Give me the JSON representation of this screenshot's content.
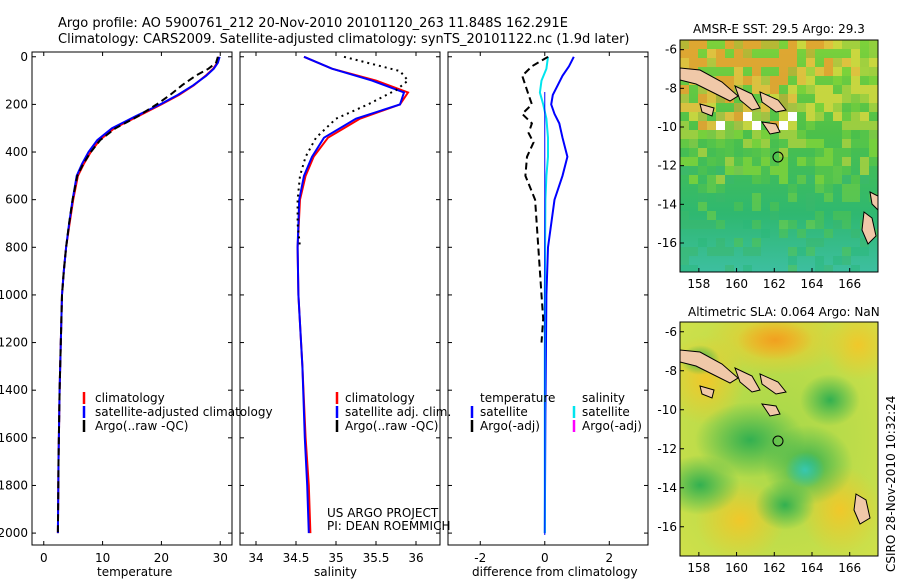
{
  "header": {
    "title_line1": "Argo profile: AO 5900761_212 20-Nov-2010 20101120_263 11.848S 162.291E",
    "title_line2": "Climatology: CARS2009. Satellite-adjusted climatology: synTS_20101122.nc (1.9d later)"
  },
  "footer": {
    "project": "US ARGO PROJECT",
    "pi": "PI: DEAN ROEMMICH",
    "stamp": "CSIRO 28-Nov-2010 10:32:24"
  },
  "colors": {
    "climatology": "#ff0000",
    "satellite": "#0000ff",
    "argo": "#000000",
    "temp_diff_satellite": "#0000ff",
    "sal_diff_satellite": "#00e5ee",
    "sal_diff_argo": "#ff00ff",
    "land": "#f0c8a8"
  },
  "chart_data": [
    {
      "type": "line",
      "panel": "temperature",
      "xlabel": "temperature",
      "ylabel": "",
      "xlim": [
        -2,
        32
      ],
      "ylim": [
        2050,
        -20
      ],
      "xticks": [
        0,
        10,
        20,
        30
      ],
      "yticks": [
        0,
        200,
        400,
        600,
        800,
        1000,
        1200,
        1400,
        1600,
        1800,
        2000
      ],
      "legend": [
        "climatology",
        "satellite-adjusted climatology",
        "Argo(..raw -QC)"
      ],
      "legend_position": "bottom-right",
      "series": [
        {
          "name": "climatology",
          "style": "solid",
          "x": [
            29.8,
            29.5,
            28.8,
            27.5,
            25.5,
            23.0,
            20.0,
            16.0,
            12.0,
            9.5,
            8.0,
            6.8,
            5.8,
            5.0,
            4.4,
            3.8,
            3.4,
            3.1,
            2.9,
            2.7,
            2.5,
            2.4
          ],
          "y": [
            0,
            25,
            50,
            80,
            120,
            160,
            200,
            250,
            300,
            350,
            400,
            450,
            500,
            600,
            700,
            800,
            900,
            1000,
            1200,
            1400,
            1700,
            2000
          ]
        },
        {
          "name": "satellite-adjusted climatology",
          "style": "solid",
          "x": [
            29.9,
            29.6,
            28.9,
            27.6,
            25.4,
            22.8,
            19.8,
            15.6,
            11.6,
            9.1,
            7.6,
            6.5,
            5.6,
            4.9,
            4.3,
            3.8,
            3.4,
            3.1,
            2.9,
            2.7,
            2.5,
            2.4
          ],
          "y": [
            0,
            25,
            50,
            80,
            120,
            160,
            200,
            250,
            300,
            350,
            400,
            450,
            500,
            600,
            700,
            800,
            900,
            1000,
            1200,
            1400,
            1700,
            2000
          ]
        },
        {
          "name": "Argo(..raw -QC)",
          "style": "dashed",
          "x": [
            29.6,
            29.3,
            28.0,
            25.8,
            23.5,
            21.5,
            19.2,
            16.0,
            12.2,
            9.6,
            8.0,
            6.7,
            5.7,
            4.9,
            4.3,
            3.8,
            3.4,
            3.1,
            2.9,
            2.7,
            2.5,
            2.4
          ],
          "y": [
            0,
            25,
            50,
            80,
            120,
            160,
            200,
            250,
            300,
            350,
            400,
            450,
            500,
            600,
            700,
            800,
            900,
            1000,
            1200,
            1400,
            1700,
            2000
          ]
        }
      ]
    },
    {
      "type": "line",
      "panel": "salinity",
      "xlabel": "salinity",
      "ylabel": "",
      "xlim": [
        33.8,
        36.3
      ],
      "ylim": [
        2050,
        -20
      ],
      "xticks": [
        34,
        34.5,
        35,
        35.5,
        36
      ],
      "legend": [
        "climatology",
        "satellite adj. clim.",
        "Argo(..raw -QC)"
      ],
      "legend_position": "bottom-right",
      "series": [
        {
          "name": "climatology",
          "style": "solid",
          "x": [
            34.6,
            34.95,
            35.5,
            35.9,
            35.8,
            35.3,
            34.9,
            34.72,
            34.62,
            34.55,
            34.52,
            34.53,
            34.58,
            34.62,
            34.66,
            34.68
          ],
          "y": [
            0,
            50,
            100,
            150,
            200,
            260,
            340,
            420,
            500,
            600,
            800,
            1000,
            1300,
            1600,
            1800,
            2000
          ]
        },
        {
          "name": "satellite adj. clim.",
          "style": "solid",
          "x": [
            34.6,
            34.95,
            35.45,
            35.85,
            35.8,
            35.25,
            34.85,
            34.7,
            34.6,
            34.54,
            34.52,
            34.53,
            34.58,
            34.61,
            34.64,
            34.66
          ],
          "y": [
            0,
            50,
            100,
            150,
            200,
            260,
            340,
            420,
            500,
            600,
            800,
            1000,
            1300,
            1600,
            1800,
            2000
          ]
        },
        {
          "name": "Argo(..raw -QC)",
          "style": "dotted",
          "x": [
            35.1,
            35.8,
            35.9,
            35.75,
            35.4,
            35.0,
            34.75,
            34.62,
            34.55,
            34.52,
            34.52,
            34.55
          ],
          "y": [
            0,
            60,
            100,
            140,
            200,
            260,
            340,
            420,
            500,
            600,
            700,
            800
          ]
        }
      ]
    },
    {
      "type": "line",
      "panel": "difference",
      "xlabel": "difference from climatology",
      "ylabel": "",
      "xlim": [
        -3,
        3.2
      ],
      "ylim": [
        2050,
        -20
      ],
      "xticks": [
        -2,
        0,
        2
      ],
      "legend": [
        "temperature",
        "satellite",
        "Argo(-adj)",
        "salinity",
        "satellite",
        "Argo(-adj)"
      ],
      "legend_position": "bottom-right",
      "series": [
        {
          "name": "temperature satellite",
          "style": "solid",
          "x": [
            0.9,
            0.75,
            0.55,
            0.4,
            0.25,
            0.2,
            0.3,
            0.45,
            0.55,
            0.7,
            0.55,
            0.3,
            0.1,
            0.05,
            0.02,
            0.0
          ],
          "y": [
            0,
            40,
            80,
            120,
            160,
            200,
            240,
            280,
            340,
            420,
            500,
            600,
            800,
            1000,
            1500,
            2000
          ]
        },
        {
          "name": "salinity satellite",
          "style": "solid",
          "x": [
            0.1,
            0.05,
            -0.1,
            -0.15,
            -0.05,
            0.05,
            0.1,
            0.1,
            0.05,
            0.02,
            0.0,
            0.0
          ],
          "y": [
            0,
            50,
            100,
            150,
            200,
            260,
            340,
            420,
            500,
            600,
            1000,
            2000
          ]
        },
        {
          "name": "temperature Argo(-adj)",
          "style": "dashed",
          "x": [
            0.1,
            -0.4,
            -0.7,
            -0.6,
            -0.5,
            -0.4,
            -0.7,
            -0.4,
            -0.5,
            -0.35,
            -0.55,
            -0.6,
            -0.3,
            -0.2,
            -0.1,
            -0.05,
            -0.1
          ],
          "y": [
            0,
            40,
            80,
            120,
            160,
            200,
            240,
            280,
            320,
            360,
            420,
            500,
            600,
            800,
            1000,
            1100,
            1200
          ]
        }
      ]
    },
    {
      "type": "heatmap",
      "panel": "sst-map",
      "title": "AMSR-E SST: 29.5 Argo: 29.3",
      "xlim": [
        157,
        167.5
      ],
      "ylim": [
        -17.5,
        -5.5
      ],
      "xticks": [
        158,
        160,
        162,
        164,
        166
      ],
      "yticks": [
        -6,
        -8,
        -10,
        -12,
        -14,
        -16
      ],
      "argo_position": {
        "lon": 162.29,
        "lat": -11.85
      }
    },
    {
      "type": "heatmap",
      "panel": "sla-map",
      "title": "Altimetric SLA: 0.064 Argo: NaN",
      "xlim": [
        157,
        167.5
      ],
      "ylim": [
        -17.5,
        -5.5
      ],
      "xticks": [
        158,
        160,
        162,
        164,
        166
      ],
      "yticks": [
        -6,
        -8,
        -10,
        -12,
        -14,
        -16
      ],
      "argo_position": {
        "lon": 162.29,
        "lat": -11.85
      }
    }
  ]
}
